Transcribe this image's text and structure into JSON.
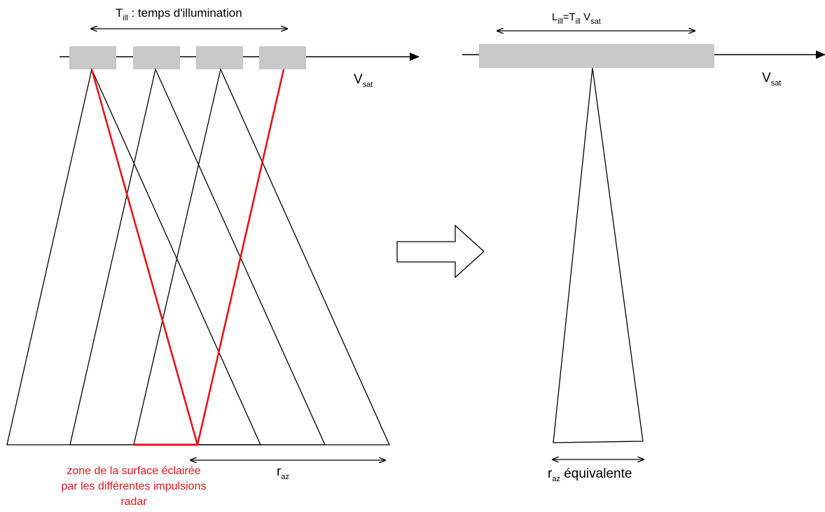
{
  "labels": {
    "till_main": "T",
    "till_sub": "ill",
    "till_rest": " : temps d'illumination",
    "vsat_left_main": "V",
    "vsat_left_sub": "sat",
    "lill_main": "L",
    "lill_sub": "ill",
    "lill_eq": "=T",
    "lill_till_sub": "ill",
    "lill_v": " V",
    "lill_vsat_sub": "sat",
    "vsat_right_main": "V",
    "vsat_right_sub": "sat",
    "raz_main": "r",
    "raz_sub": "az",
    "raz_eq_main": "r",
    "raz_eq_sub": "az",
    "raz_eq_rest": " équivalente"
  },
  "caption": {
    "line1": "zone de la surface éclairée",
    "line2": "par les différentes impulsions",
    "line3": "radar"
  },
  "colors": {
    "stroke": "#000000",
    "highlight": "#e8131b",
    "antenna": "#c8c8c8"
  }
}
